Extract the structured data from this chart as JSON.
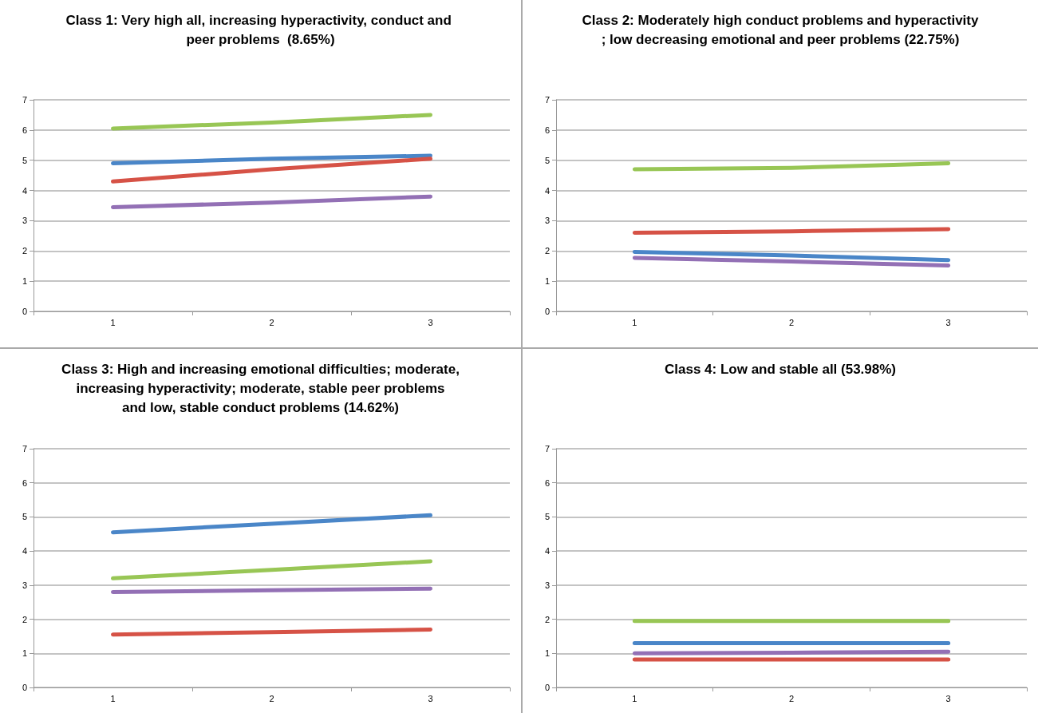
{
  "chart_data": [
    {
      "type": "line",
      "title": "Class 1: Very high all, increasing hyperactivity, conduct and peer problems  (8.65%)",
      "categories": [
        "1",
        "2",
        "3"
      ],
      "ylim": [
        0,
        7
      ],
      "yticks": [
        0,
        1,
        2,
        3,
        4,
        5,
        6,
        7
      ],
      "grid": "y",
      "marker": "none",
      "line_style": "solid",
      "series": [
        {
          "color": "#4a86c8",
          "values": [
            4.9,
            5.05,
            5.15
          ]
        },
        {
          "color": "#d65246",
          "values": [
            4.3,
            4.7,
            5.05
          ]
        },
        {
          "color": "#98c655",
          "values": [
            6.05,
            6.25,
            6.5
          ]
        },
        {
          "color": "#9370b5",
          "values": [
            3.45,
            3.6,
            3.8
          ]
        }
      ]
    },
    {
      "type": "line",
      "title": "Class 2: Moderately high conduct problems and hyperactivity; low decreasing emotional and peer problems (22.75%)",
      "categories": [
        "1",
        "2",
        "3"
      ],
      "ylim": [
        0,
        7
      ],
      "yticks": [
        0,
        1,
        2,
        3,
        4,
        5,
        6,
        7
      ],
      "grid": "y",
      "marker": "none",
      "line_style": "solid",
      "series": [
        {
          "color": "#4a86c8",
          "values": [
            1.97,
            1.85,
            1.7
          ]
        },
        {
          "color": "#d65246",
          "values": [
            2.6,
            2.65,
            2.72
          ]
        },
        {
          "color": "#98c655",
          "values": [
            4.7,
            4.75,
            4.9
          ]
        },
        {
          "color": "#9370b5",
          "values": [
            1.77,
            1.65,
            1.52
          ]
        }
      ]
    },
    {
      "type": "line",
      "title": "Class 3: High and increasing emotional difficulties; moderate, increasing hyperactivity; moderate, stable peer problems and low, stable conduct problems (14.62%)",
      "categories": [
        "1",
        "2",
        "3"
      ],
      "ylim": [
        0,
        7
      ],
      "yticks": [
        0,
        1,
        2,
        3,
        4,
        5,
        6,
        7
      ],
      "grid": "y",
      "marker": "none",
      "line_style": "solid",
      "series": [
        {
          "color": "#4a86c8",
          "values": [
            4.55,
            4.8,
            5.05
          ]
        },
        {
          "color": "#d65246",
          "values": [
            1.55,
            1.62,
            1.7
          ]
        },
        {
          "color": "#98c655",
          "values": [
            3.2,
            3.45,
            3.7
          ]
        },
        {
          "color": "#9370b5",
          "values": [
            2.8,
            2.85,
            2.9
          ]
        }
      ]
    },
    {
      "type": "line",
      "title": "Class 4: Low and stable all (53.98%)",
      "categories": [
        "1",
        "2",
        "3"
      ],
      "ylim": [
        0,
        7
      ],
      "yticks": [
        0,
        1,
        2,
        3,
        4,
        5,
        6,
        7
      ],
      "grid": "y",
      "marker": "none",
      "line_style": "solid",
      "series": [
        {
          "color": "#4a86c8",
          "values": [
            1.3,
            1.3,
            1.3
          ]
        },
        {
          "color": "#d65246",
          "values": [
            0.82,
            0.82,
            0.82
          ]
        },
        {
          "color": "#98c655",
          "values": [
            1.95,
            1.95,
            1.95
          ]
        },
        {
          "color": "#9370b5",
          "values": [
            1.0,
            1.02,
            1.05
          ]
        }
      ]
    }
  ]
}
